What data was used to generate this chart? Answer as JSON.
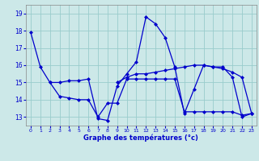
{
  "title": "Graphe des températures (°c)",
  "bg_color": "#cce8e8",
  "line_color": "#0000cc",
  "grid_color": "#99cccc",
  "xlim": [
    -0.5,
    23.5
  ],
  "ylim": [
    12.5,
    19.5
  ],
  "yticks": [
    13,
    14,
    15,
    16,
    17,
    18,
    19
  ],
  "xticks": [
    0,
    1,
    2,
    3,
    4,
    5,
    6,
    7,
    8,
    9,
    10,
    11,
    12,
    13,
    14,
    15,
    16,
    17,
    18,
    19,
    20,
    21,
    22,
    23
  ],
  "series": [
    {
      "x": [
        0,
        1,
        2,
        3,
        4,
        5,
        6,
        7,
        8,
        9,
        10,
        11,
        12,
        13,
        14,
        15,
        16,
        17,
        18,
        19,
        20,
        21,
        22,
        23
      ],
      "y": [
        17.9,
        15.9,
        15.0,
        15.0,
        15.1,
        15.1,
        15.2,
        12.9,
        12.8,
        14.8,
        15.5,
        16.2,
        18.8,
        18.4,
        17.6,
        15.9,
        13.2,
        14.6,
        16.0,
        15.9,
        15.9,
        15.3,
        13.0,
        13.2
      ]
    },
    {
      "x": [
        2,
        3,
        4,
        5,
        6,
        7,
        8,
        9,
        10,
        11,
        12,
        13,
        14,
        15,
        16,
        17,
        18,
        19,
        20,
        21,
        22,
        23
      ],
      "y": [
        15.0,
        14.2,
        14.1,
        14.0,
        14.0,
        13.0,
        13.8,
        13.8,
        15.2,
        15.2,
        15.2,
        15.2,
        15.2,
        15.2,
        13.3,
        13.3,
        13.3,
        13.3,
        13.3,
        13.3,
        13.1,
        13.2
      ]
    },
    {
      "x": [
        9,
        10,
        11,
        12,
        13,
        14,
        15,
        16,
        17,
        18,
        19,
        20,
        21,
        22,
        23
      ],
      "y": [
        15.0,
        15.3,
        15.5,
        15.5,
        15.6,
        15.7,
        15.8,
        15.9,
        16.0,
        16.0,
        15.9,
        15.8,
        15.6,
        15.3,
        13.2
      ]
    }
  ]
}
